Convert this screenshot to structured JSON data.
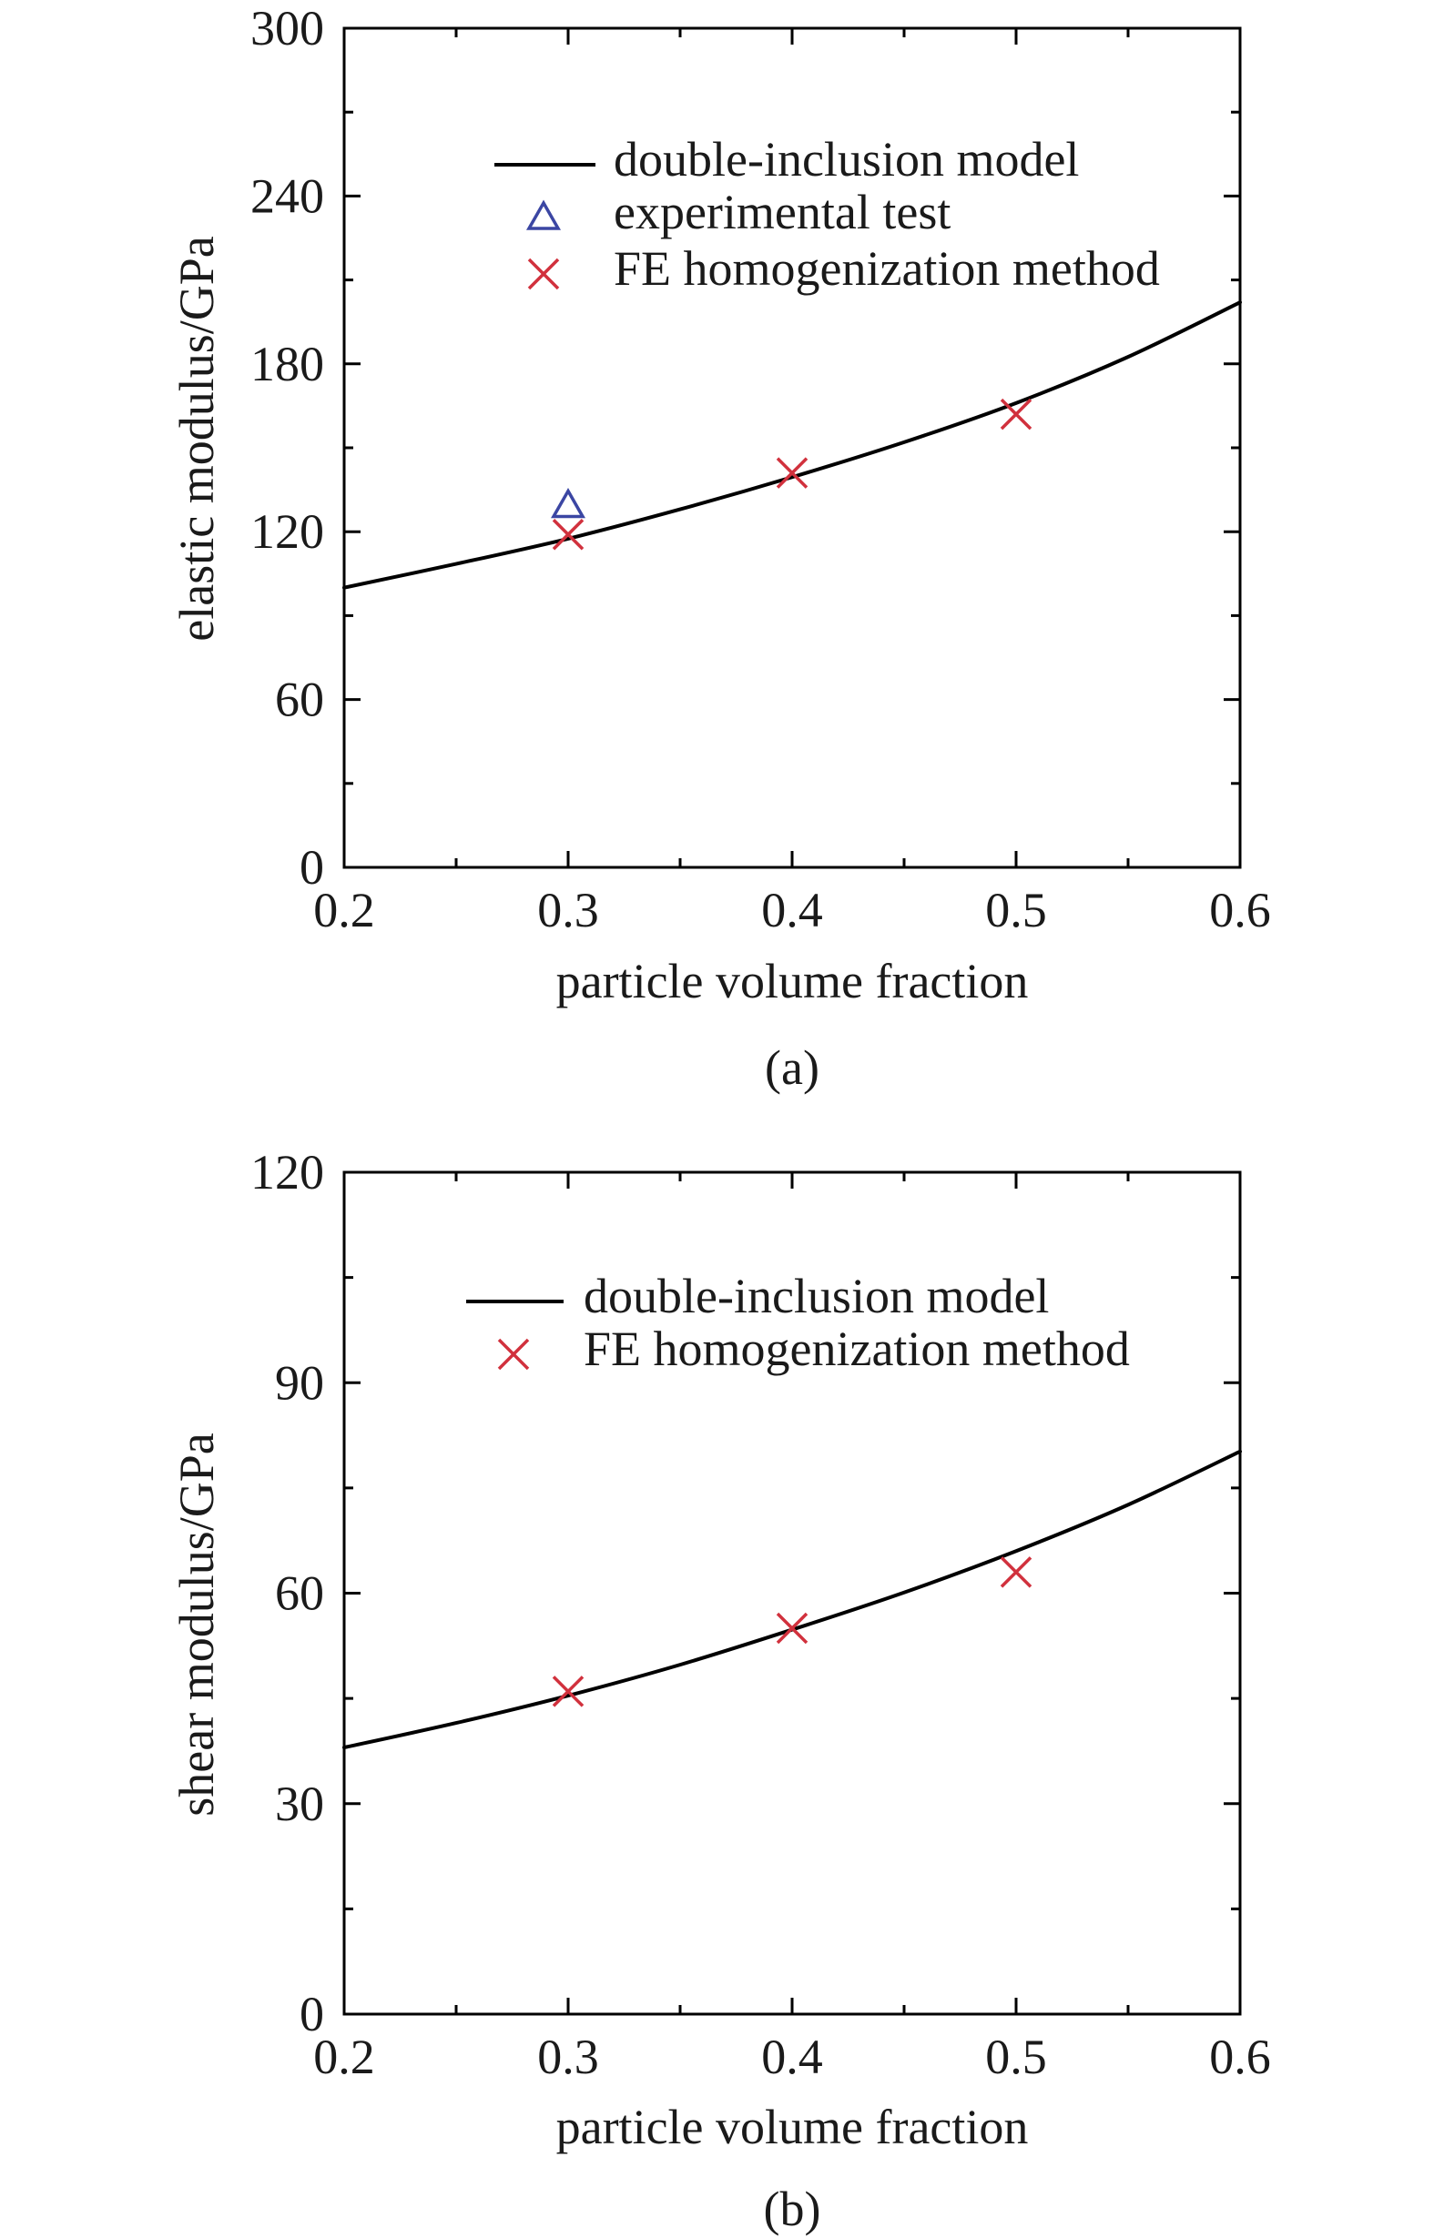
{
  "chart_data": [
    {
      "type": "line",
      "panel": "(a)",
      "xlabel": "particle volume fraction",
      "ylabel": "elastic modulus/GPa",
      "xlim": [
        0.2,
        0.6
      ],
      "ylim": [
        0,
        300
      ],
      "xticks": [
        "0.2",
        "0.3",
        "0.4",
        "0.5",
        "0.6"
      ],
      "yticks": [
        "0",
        "60",
        "120",
        "180",
        "240",
        "300"
      ],
      "grid": false,
      "legend_position": "top-center",
      "series": [
        {
          "name": "double-inclusion model",
          "kind": "line",
          "color": "#000000",
          "x": [
            0.2,
            0.25,
            0.3,
            0.35,
            0.4,
            0.45,
            0.5,
            0.55,
            0.6
          ],
          "y": [
            100,
            108.5,
            117.5,
            128,
            139.5,
            152,
            166,
            182.5,
            202
          ]
        },
        {
          "name": "experimental test",
          "kind": "marker",
          "marker": "triangle",
          "color": "#3b46a3",
          "x": [
            0.3
          ],
          "y": [
            129
          ]
        },
        {
          "name": "FE homogenization method",
          "kind": "marker",
          "marker": "x",
          "color": "#d1313d",
          "x": [
            0.3,
            0.4,
            0.5
          ],
          "y": [
            119,
            141,
            162
          ]
        }
      ]
    },
    {
      "type": "line",
      "panel": "(b)",
      "xlabel": "particle volume fraction",
      "ylabel": "shear modulus/GPa",
      "xlim": [
        0.2,
        0.6
      ],
      "ylim": [
        0,
        120
      ],
      "xticks": [
        "0.2",
        "0.3",
        "0.4",
        "0.5",
        "0.6"
      ],
      "yticks": [
        "0",
        "30",
        "60",
        "90",
        "120"
      ],
      "grid": false,
      "legend_position": "top-center",
      "series": [
        {
          "name": "double-inclusion model",
          "kind": "line",
          "color": "#000000",
          "x": [
            0.2,
            0.25,
            0.3,
            0.35,
            0.4,
            0.45,
            0.5,
            0.55,
            0.6
          ],
          "y": [
            38,
            41.5,
            45.4,
            49.8,
            54.8,
            60.1,
            66,
            72.6,
            80.2
          ]
        },
        {
          "name": "FE homogenization method",
          "kind": "marker",
          "marker": "x",
          "color": "#d1313d",
          "x": [
            0.3,
            0.4,
            0.5
          ],
          "y": [
            46,
            55,
            63
          ]
        }
      ]
    }
  ]
}
